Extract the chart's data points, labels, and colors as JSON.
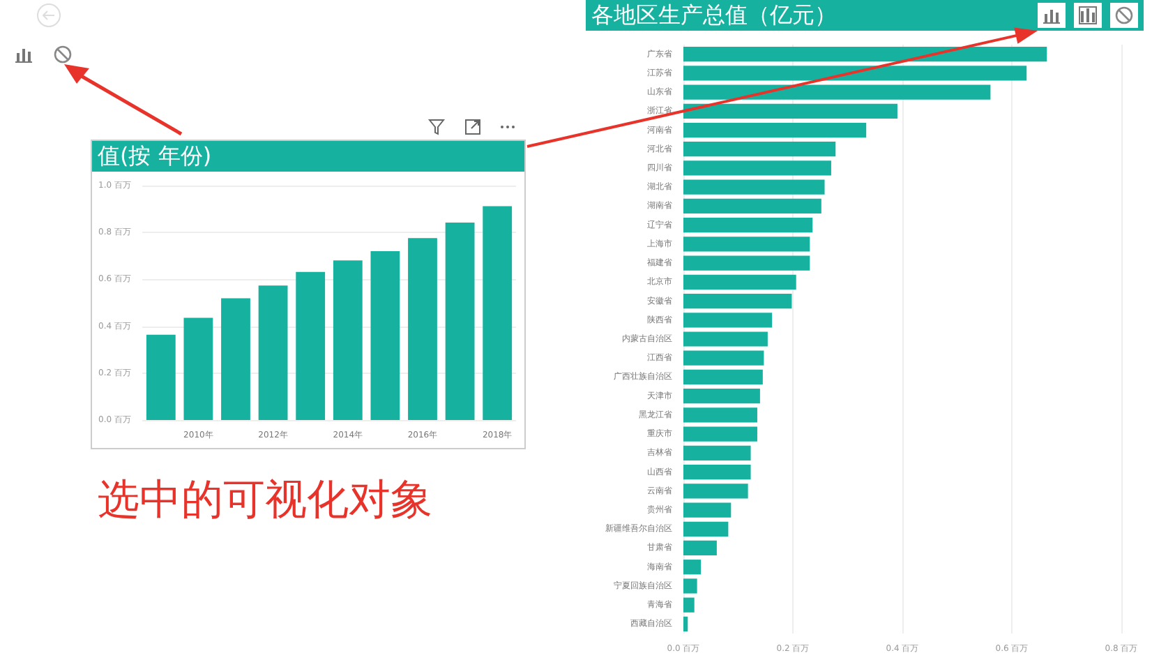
{
  "chart_data": [
    {
      "type": "bar",
      "title": "值(按 年份)",
      "categories": [
        null,
        "2010年",
        null,
        "2012年",
        null,
        "2014年",
        null,
        "2016年",
        null,
        "2018年"
      ],
      "values": [
        0.364,
        0.436,
        0.519,
        0.574,
        0.632,
        0.681,
        0.72,
        0.776,
        0.842,
        0.912
      ],
      "color": "#17b1a0",
      "ylim": [
        0,
        1
      ],
      "yticks": [
        {
          "value": 0,
          "label": "0.0 百万"
        },
        {
          "value": 0.2,
          "label": "0.2 百万"
        },
        {
          "value": 0.4,
          "label": "0.4 百万"
        },
        {
          "value": 0.6,
          "label": "0.6 百万"
        },
        {
          "value": 0.8,
          "label": "0.8 百万"
        },
        {
          "value": 1,
          "label": "1.0 百万"
        }
      ],
      "grid": "y",
      "annotations": [
        "选中的可视化对象"
      ]
    },
    {
      "type": "bar",
      "orientation": "horizontal",
      "title": "各地区生产总值（亿元）",
      "categories": [
        "广东省",
        "江苏省",
        "山东省",
        "浙江省",
        "河南省",
        "河北省",
        "四川省",
        "湖北省",
        "湖南省",
        "辽宁省",
        "上海市",
        "福建省",
        "北京市",
        "安徽省",
        "陕西省",
        "内蒙古自治区",
        "江西省",
        "广西壮族自治区",
        "天津市",
        "黑龙江省",
        "重庆市",
        "吉林省",
        "山西省",
        "云南省",
        "贵州省",
        "新疆维吾尔自治区",
        "甘肃省",
        "海南省",
        "宁夏回族自治区",
        "青海省",
        "西藏自治区"
      ],
      "values": [
        0.664,
        0.627,
        0.561,
        0.391,
        0.334,
        0.278,
        0.27,
        0.258,
        0.252,
        0.236,
        0.231,
        0.231,
        0.206,
        0.198,
        0.162,
        0.154,
        0.147,
        0.145,
        0.14,
        0.135,
        0.135,
        0.123,
        0.123,
        0.118,
        0.087,
        0.082,
        0.061,
        0.032,
        0.025,
        0.02,
        0.008
      ],
      "color": "#17b1a0",
      "xlim": [
        0,
        0.8
      ],
      "xticks": [
        {
          "value": 0,
          "label": "0.0 百万"
        },
        {
          "value": 0.2,
          "label": "0.2 百万"
        },
        {
          "value": 0.4,
          "label": "0.4 百万"
        },
        {
          "value": 0.6,
          "label": "0.6 百万"
        },
        {
          "value": 0.8,
          "label": "0.8 百万"
        }
      ],
      "grid": "x"
    }
  ]
}
